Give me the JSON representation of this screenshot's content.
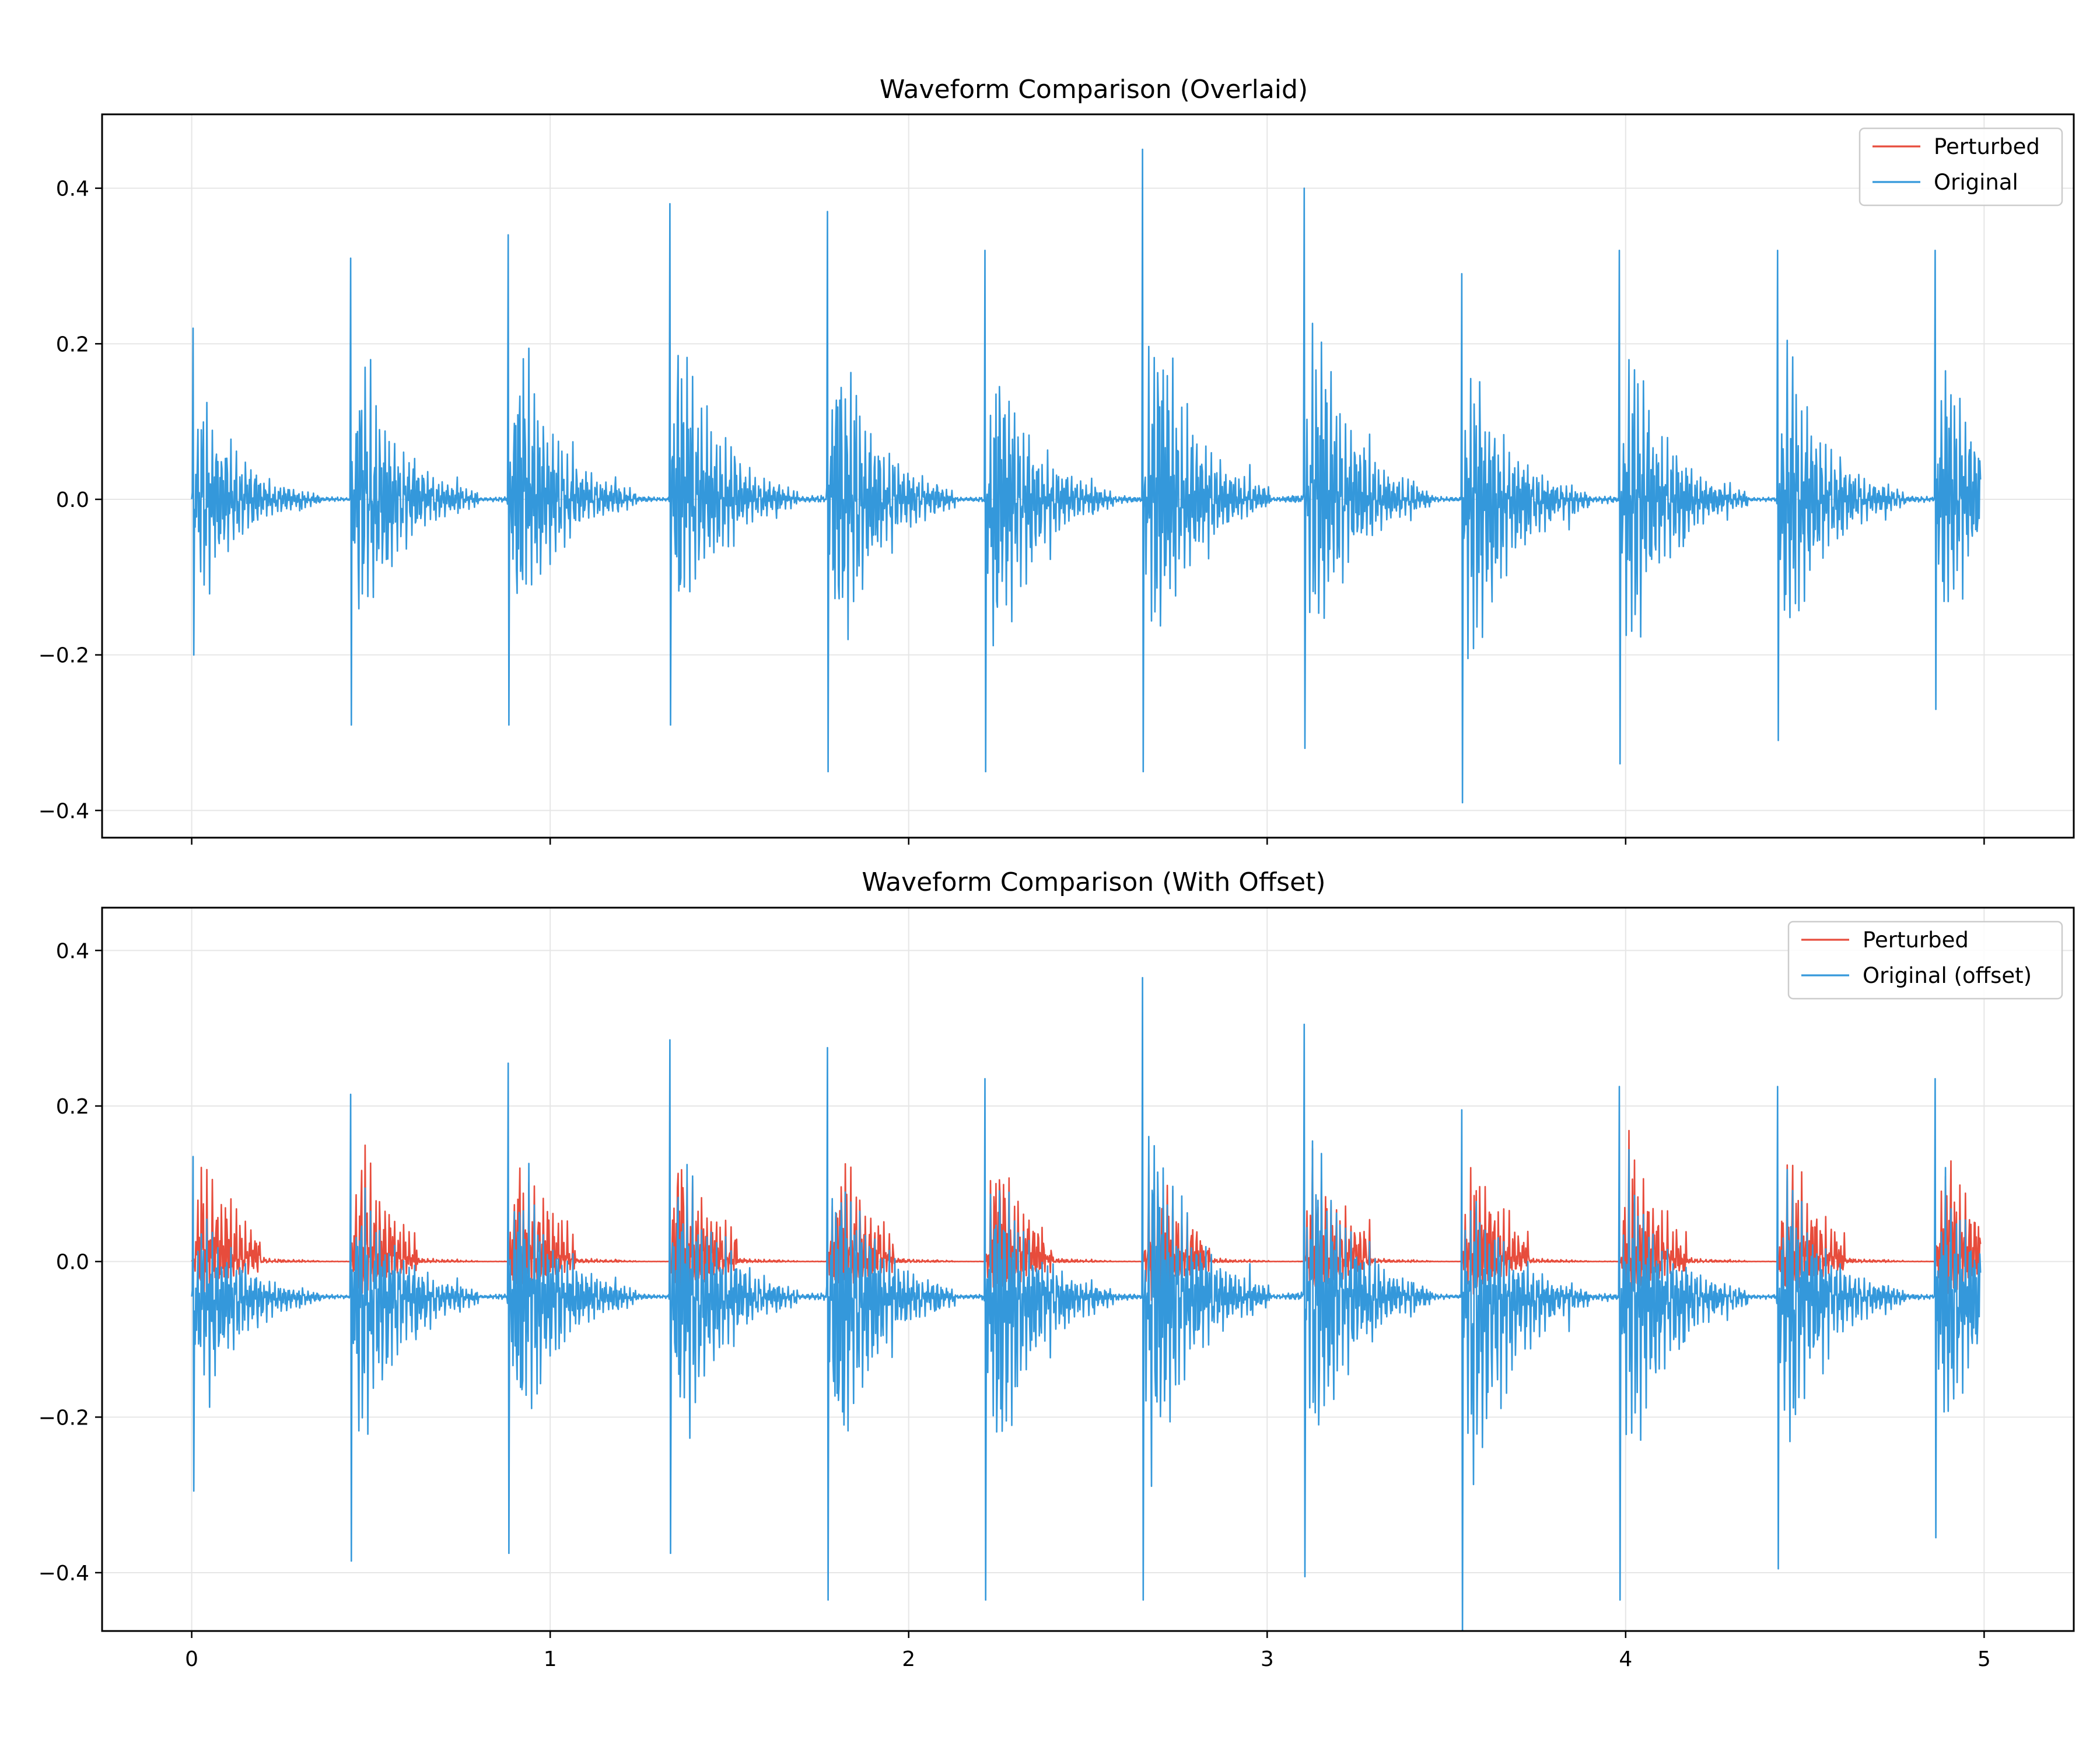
{
  "figure": {
    "background": "#ffffff"
  },
  "colors": {
    "perturbed": "#e74c3c",
    "original": "#3498db",
    "grid": "#e6e6e6",
    "frame": "#000000"
  },
  "chart_data": [
    {
      "type": "line",
      "title": "Waveform Comparison (Overlaid)",
      "xlabel": "",
      "ylabel": "",
      "xlim": [
        -0.25,
        5.25
      ],
      "ylim": [
        -0.435,
        0.495
      ],
      "xticks": [
        0,
        1,
        2,
        3,
        4,
        5
      ],
      "xtick_labels": [
        "",
        "",
        "",
        "",
        "",
        ""
      ],
      "yticks": [
        0.4,
        0.2,
        0.0,
        -0.2,
        -0.4
      ],
      "ytick_labels": [
        "0.4",
        "0.2",
        "0.0",
        "−0.2",
        "−0.4"
      ],
      "grid": true,
      "legend_position": "top-right",
      "series": [
        {
          "name": "Perturbed",
          "color": "#e74c3c",
          "offset": 0,
          "drawn": false
        },
        {
          "name": "Original",
          "color": "#3498db",
          "offset": 0,
          "drawn": true
        }
      ],
      "events": [
        {
          "t": 0.0,
          "peak": 0.22,
          "trough": -0.2
        },
        {
          "t": 0.44,
          "peak": 0.31,
          "trough": -0.29
        },
        {
          "t": 0.88,
          "peak": 0.34,
          "trough": -0.29
        },
        {
          "t": 1.33,
          "peak": 0.38,
          "trough": -0.29
        },
        {
          "t": 1.77,
          "peak": 0.37,
          "trough": -0.35
        },
        {
          "t": 2.21,
          "peak": 0.32,
          "trough": -0.35
        },
        {
          "t": 2.65,
          "peak": 0.45,
          "trough": -0.35
        },
        {
          "t": 3.1,
          "peak": 0.4,
          "trough": -0.32
        },
        {
          "t": 3.54,
          "peak": 0.29,
          "trough": -0.39
        },
        {
          "t": 3.98,
          "peak": 0.32,
          "trough": -0.34
        },
        {
          "t": 4.42,
          "peak": 0.32,
          "trough": -0.31
        },
        {
          "t": 4.86,
          "peak": 0.32,
          "trough": -0.27
        }
      ]
    },
    {
      "type": "line",
      "title": "Waveform Comparison (With Offset)",
      "xlabel": "",
      "ylabel": "",
      "xlim": [
        -0.25,
        5.25
      ],
      "ylim": [
        -0.475,
        0.455
      ],
      "xticks": [
        0,
        1,
        2,
        3,
        4,
        5
      ],
      "xtick_labels": [
        "0",
        "1",
        "2",
        "3",
        "4",
        "5"
      ],
      "yticks": [
        0.4,
        0.2,
        0.0,
        -0.2,
        -0.4
      ],
      "ytick_labels": [
        "0.4",
        "0.2",
        "0.0",
        "−0.2",
        "−0.4"
      ],
      "grid": true,
      "legend_position": "top-right",
      "series": [
        {
          "name": "Perturbed",
          "color": "#e74c3c",
          "offset": 0,
          "drawn": true,
          "peak_range": [
            0.18,
            0.2
          ]
        },
        {
          "name": "Original (offset)",
          "color": "#3498db",
          "offset": -0.045,
          "drawn": true
        }
      ],
      "events": [
        {
          "t": 0.0,
          "peak": 0.18,
          "trough": -0.25
        },
        {
          "t": 0.44,
          "peak": 0.26,
          "trough": -0.34
        },
        {
          "t": 0.88,
          "peak": 0.3,
          "trough": -0.33
        },
        {
          "t": 1.33,
          "peak": 0.33,
          "trough": -0.33
        },
        {
          "t": 1.77,
          "peak": 0.32,
          "trough": -0.39
        },
        {
          "t": 2.21,
          "peak": 0.28,
          "trough": -0.39
        },
        {
          "t": 2.65,
          "peak": 0.41,
          "trough": -0.39
        },
        {
          "t": 3.1,
          "peak": 0.35,
          "trough": -0.36
        },
        {
          "t": 3.54,
          "peak": 0.24,
          "trough": -0.44
        },
        {
          "t": 3.98,
          "peak": 0.27,
          "trough": -0.39
        },
        {
          "t": 4.42,
          "peak": 0.27,
          "trough": -0.35
        },
        {
          "t": 4.86,
          "peak": 0.28,
          "trough": -0.31
        }
      ]
    }
  ]
}
